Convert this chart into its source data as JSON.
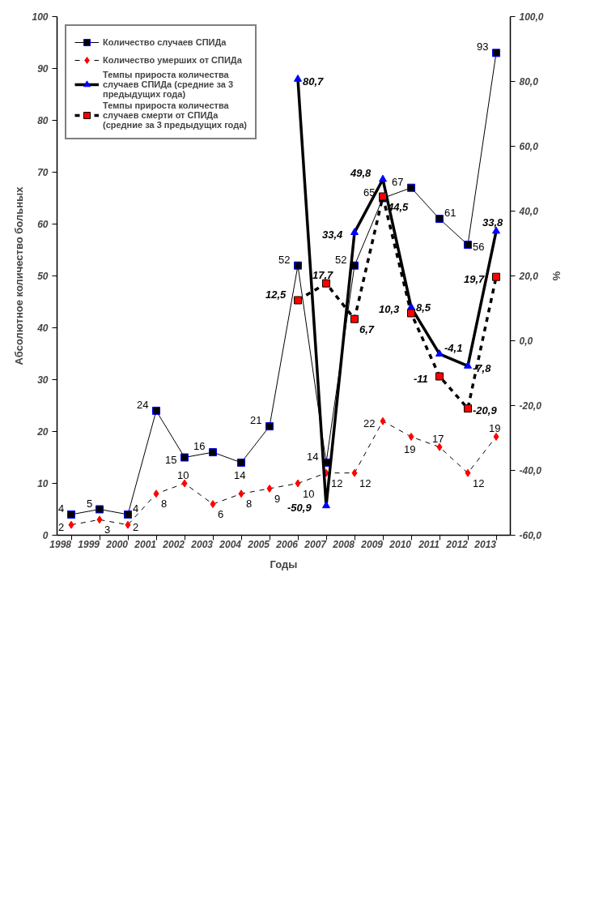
{
  "chart_data": {
    "type": "line",
    "xlabel": "Годы",
    "ylabel": "Абсолютное количество больных",
    "y2label": "%",
    "categories": [
      "1998",
      "1999",
      "2000",
      "2001",
      "2002",
      "2003",
      "2004",
      "2005",
      "2006",
      "2007",
      "2008",
      "2009",
      "2010",
      "2011",
      "2012",
      "2013"
    ],
    "ylim": [
      0,
      100
    ],
    "yticks": [
      0,
      10,
      20,
      30,
      40,
      50,
      60,
      70,
      80,
      90,
      100
    ],
    "y2lim": [
      -60,
      100
    ],
    "y2ticks": [
      {
        "value": -60,
        "label": "-60,0"
      },
      {
        "value": -40,
        "label": "-40,0"
      },
      {
        "value": -20,
        "label": "-20,0"
      },
      {
        "value": 0,
        "label": "0,0"
      },
      {
        "value": 20,
        "label": "20,0"
      },
      {
        "value": 40,
        "label": "40,0"
      },
      {
        "value": 60,
        "label": "60,0"
      },
      {
        "value": 80,
        "label": "80,0"
      },
      {
        "value": 100,
        "label": "100,0"
      }
    ],
    "grid": false,
    "legend": "top left",
    "series": [
      {
        "name": "Количество случаев СПИДа",
        "color": "#000000",
        "marker": "square",
        "line_style": "solid",
        "values": [
          4,
          5,
          4,
          24,
          15,
          16,
          14,
          21,
          52,
          14,
          52,
          65,
          67,
          61,
          56,
          93
        ],
        "value_labels": [
          "4",
          "5",
          "4",
          "24",
          "15",
          "16",
          "14",
          "21",
          "52",
          "14",
          "52",
          "65",
          "67",
          "61",
          "56",
          "93"
        ]
      },
      {
        "name": "Количество умерших от СПИДа",
        "color": "#000000",
        "marker": "diamond",
        "line_style": "dashed",
        "values": [
          2,
          3,
          2,
          8,
          10,
          6,
          8,
          9,
          10,
          12,
          12,
          22,
          19,
          17,
          12,
          19
        ],
        "value_labels": [
          "2",
          "3",
          "2",
          "8",
          "10",
          "6",
          "8",
          "9",
          "10",
          "12",
          "12",
          "22",
          "19",
          "17",
          "12",
          "19"
        ]
      },
      {
        "name": "Темпы прироста количества случаев СПИДа (средние за 3 предыдущих года)",
        "color": "#000000",
        "marker": "triangle",
        "line_style": "solid",
        "axis": "y2",
        "values": [
          null,
          null,
          null,
          null,
          null,
          null,
          null,
          null,
          80.7,
          -50.9,
          33.4,
          49.8,
          10.3,
          -4.1,
          -7.8,
          33.8
        ],
        "value_labels": [
          null,
          null,
          null,
          null,
          null,
          null,
          null,
          null,
          "80,7",
          "-50,9",
          "33,4",
          "49,8",
          "10,3",
          "-4,1",
          "-7,8",
          "33,8"
        ]
      },
      {
        "name": "Темпы прироста количества случаев смерти от СПИДа (средние за 3 предыдущих года)",
        "color": "#000000",
        "marker": "square",
        "line_style": "dashed",
        "axis": "y2",
        "values": [
          null,
          null,
          null,
          null,
          null,
          null,
          null,
          null,
          12.5,
          17.7,
          6.7,
          44.5,
          8.5,
          -11,
          -20.9,
          19.7
        ],
        "value_labels": [
          null,
          null,
          null,
          null,
          null,
          null,
          null,
          null,
          "12,5",
          "17,7",
          "6,7",
          "44,5",
          "8,5",
          "-11",
          "-20,9",
          "19,7"
        ]
      }
    ]
  }
}
